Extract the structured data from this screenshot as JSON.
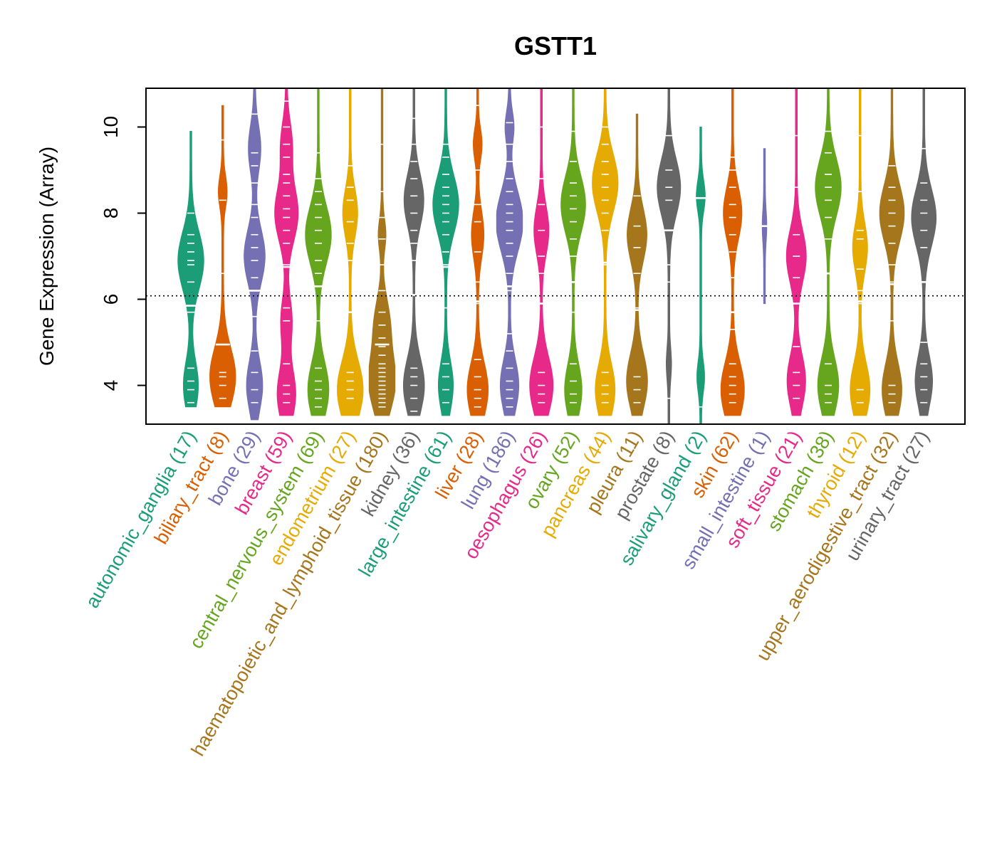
{
  "chart_data": {
    "type": "violin",
    "title": "GSTT1",
    "ylabel": "Gene Expression (Array)",
    "xlabel": "",
    "ylim": [
      3.1,
      10.9
    ],
    "yticks": [
      4,
      6,
      8,
      10
    ],
    "reference_line": 6.08,
    "categories": [
      {
        "name": "autonomic_ganglia",
        "n": "(17)",
        "color": "#1B9E77",
        "median": 5.85,
        "min": 3.5,
        "max": 9.9,
        "modes": [
          [
            4.0,
            0.55
          ],
          [
            6.9,
            1.0
          ]
        ],
        "points": [
          3.6,
          3.9,
          4.1,
          4.4,
          5.7,
          6.4,
          6.8,
          6.9,
          7.1,
          7.3,
          7.5,
          8.0
        ]
      },
      {
        "name": "biliary_tract",
        "n": "(8)",
        "color": "#D95F02",
        "median": 4.95,
        "min": 3.5,
        "max": 10.5,
        "modes": [
          [
            4.2,
            1.0
          ],
          [
            8.5,
            0.3
          ]
        ],
        "points": [
          3.7,
          4.0,
          4.2,
          4.3,
          6.6,
          8.3,
          9.7
        ]
      },
      {
        "name": "bone",
        "n": "(29)",
        "color": "#7570B3",
        "median": 6.2,
        "min": 3.2,
        "max": 10.9,
        "modes": [
          [
            4.0,
            0.6
          ],
          [
            7.0,
            0.8
          ],
          [
            9.5,
            0.45
          ]
        ],
        "points": [
          3.6,
          3.9,
          4.3,
          4.8,
          5.6,
          6.2,
          6.5,
          6.9,
          7.2,
          7.5,
          7.9,
          8.2,
          8.7,
          9.1,
          9.4,
          10.3
        ]
      },
      {
        "name": "breast",
        "n": "(59)",
        "color": "#E7298A",
        "median": 6.75,
        "min": 3.3,
        "max": 10.9,
        "modes": [
          [
            3.8,
            0.7
          ],
          [
            5.5,
            0.4
          ],
          [
            8.0,
            0.9
          ],
          [
            9.6,
            0.4
          ]
        ],
        "points": [
          3.6,
          3.8,
          4.0,
          4.5,
          5.5,
          5.8,
          6.8,
          7.3,
          7.6,
          7.9,
          8.1,
          8.4,
          8.7,
          8.9,
          9.3,
          9.6,
          10.0,
          10.6
        ]
      },
      {
        "name": "central_nervous_system",
        "n": "(69)",
        "color": "#66A61E",
        "median": 6.3,
        "min": 3.3,
        "max": 10.9,
        "modes": [
          [
            3.9,
            0.8
          ],
          [
            7.5,
            1.0
          ]
        ],
        "points": [
          3.5,
          3.7,
          3.9,
          4.1,
          4.4,
          5.5,
          6.3,
          6.6,
          6.9,
          7.3,
          7.6,
          7.9,
          8.2,
          8.5,
          8.8,
          9.4
        ]
      },
      {
        "name": "endometrium",
        "n": "(27)",
        "color": "#E6AB02",
        "median": 5.7,
        "min": 3.3,
        "max": 10.9,
        "modes": [
          [
            3.9,
            1.0
          ],
          [
            8.0,
            0.55
          ]
        ],
        "points": [
          3.7,
          3.9,
          4.1,
          4.3,
          5.7,
          6.9,
          7.3,
          7.8,
          8.3,
          8.6,
          9.1
        ]
      },
      {
        "name": "haematopoietic_and_lymphoid_tissue",
        "n": "(180)",
        "color": "#A6761D",
        "median": 4.95,
        "min": 3.3,
        "max": 10.9,
        "modes": [
          [
            4.1,
            1.05
          ],
          [
            5.5,
            0.5
          ],
          [
            7.5,
            0.25
          ]
        ],
        "points": [
          3.5,
          3.6,
          3.7,
          3.8,
          3.9,
          4.0,
          4.1,
          4.2,
          4.3,
          4.4,
          4.5,
          4.7,
          4.9,
          5.1,
          5.4,
          5.7,
          6.2,
          6.8,
          7.4,
          7.9,
          8.5,
          9.6
        ]
      },
      {
        "name": "kidney",
        "n": "(36)",
        "color": "#666666",
        "median": 6.1,
        "min": 3.3,
        "max": 10.9,
        "modes": [
          [
            4.0,
            0.8
          ],
          [
            8.3,
            0.75
          ]
        ],
        "points": [
          3.4,
          3.7,
          4.0,
          4.2,
          4.4,
          6.9,
          7.3,
          7.6,
          8.0,
          8.4,
          8.8,
          9.2,
          9.6,
          10.2
        ]
      },
      {
        "name": "large_intestine",
        "n": "(61)",
        "color": "#1B9E77",
        "median": 6.75,
        "min": 3.3,
        "max": 10.9,
        "modes": [
          [
            4.0,
            0.55
          ],
          [
            8.2,
            1.0
          ]
        ],
        "points": [
          3.6,
          3.9,
          4.2,
          4.5,
          5.8,
          6.8,
          7.1,
          7.5,
          7.8,
          8.0,
          8.2,
          8.4,
          8.6,
          8.9,
          9.3,
          9.6
        ]
      },
      {
        "name": "liver",
        "n": "(28)",
        "color": "#D95F02",
        "median": 5.95,
        "min": 3.3,
        "max": 10.9,
        "modes": [
          [
            3.9,
            0.8
          ],
          [
            7.5,
            0.45
          ],
          [
            9.6,
            0.3
          ]
        ],
        "points": [
          3.5,
          3.7,
          3.9,
          4.2,
          4.6,
          5.9,
          6.4,
          7.1,
          7.8,
          8.2,
          9.0,
          10.5
        ]
      },
      {
        "name": "lung",
        "n": "(186)",
        "color": "#7570B3",
        "median": 6.3,
        "min": 3.3,
        "max": 10.9,
        "modes": [
          [
            4.0,
            0.7
          ],
          [
            7.8,
            1.05
          ],
          [
            10.0,
            0.3
          ]
        ],
        "points": [
          3.5,
          3.7,
          3.9,
          4.1,
          4.4,
          4.8,
          5.2,
          6.2,
          6.6,
          7.0,
          7.3,
          7.6,
          7.8,
          8.0,
          8.2,
          8.5,
          8.8,
          9.2,
          9.6,
          10.1
        ]
      },
      {
        "name": "oesophagus",
        "n": "(26)",
        "color": "#E7298A",
        "median": 5.9,
        "min": 3.3,
        "max": 10.9,
        "modes": [
          [
            4.0,
            0.9
          ],
          [
            7.6,
            0.55
          ]
        ],
        "points": [
          3.6,
          3.8,
          4.0,
          4.3,
          5.9,
          6.6,
          7.0,
          7.6,
          8.2,
          8.8,
          10.0
        ]
      },
      {
        "name": "ovary",
        "n": "(52)",
        "color": "#66A61E",
        "median": 6.4,
        "min": 3.3,
        "max": 10.9,
        "modes": [
          [
            3.9,
            0.65
          ],
          [
            8.2,
            0.95
          ]
        ],
        "points": [
          3.6,
          3.8,
          4.1,
          4.5,
          5.7,
          6.4,
          7.0,
          7.4,
          7.8,
          8.1,
          8.4,
          8.7,
          9.2,
          9.9
        ]
      },
      {
        "name": "pancreas",
        "n": "(44)",
        "color": "#E6AB02",
        "median": 6.85,
        "min": 3.3,
        "max": 10.9,
        "modes": [
          [
            3.9,
            0.75
          ],
          [
            8.7,
            1.0
          ]
        ],
        "points": [
          3.6,
          3.8,
          4.0,
          4.3,
          6.8,
          7.6,
          8.0,
          8.3,
          8.6,
          8.9,
          9.2,
          9.6,
          10.0
        ]
      },
      {
        "name": "pleura",
        "n": "(11)",
        "color": "#A6761D",
        "median": 5.75,
        "min": 3.3,
        "max": 10.3,
        "modes": [
          [
            4.1,
            0.8
          ],
          [
            7.5,
            0.75
          ]
        ],
        "points": [
          3.6,
          3.9,
          4.2,
          5.8,
          6.6,
          7.2,
          7.7,
          8.4
        ]
      },
      {
        "name": "prostate",
        "n": "(8)",
        "color": "#666666",
        "median": 7.6,
        "min": 3.1,
        "max": 10.9,
        "modes": [
          [
            4.5,
            0.15
          ],
          [
            8.6,
            0.9
          ]
        ],
        "points": [
          3.7,
          6.4,
          6.8,
          7.6,
          8.3,
          8.6,
          9.0,
          9.8
        ]
      },
      {
        "name": "salivary_gland",
        "n": "(2)",
        "color": "#1B9E77",
        "median": 8.35,
        "min": 3.1,
        "max": 10.0,
        "modes": [
          [
            4.2,
            0.25
          ],
          [
            8.4,
            0.3
          ]
        ],
        "points": [
          3.5,
          8.35
        ]
      },
      {
        "name": "skin",
        "n": "(62)",
        "color": "#D95F02",
        "median": 5.7,
        "min": 3.3,
        "max": 10.9,
        "modes": [
          [
            3.9,
            0.9
          ],
          [
            8.0,
            0.7
          ]
        ],
        "points": [
          3.6,
          3.8,
          4.0,
          4.2,
          4.5,
          5.3,
          5.7,
          6.5,
          7.1,
          7.5,
          7.9,
          8.2,
          8.6,
          9.0,
          9.3
        ]
      },
      {
        "name": "small_intestine",
        "n": "(1)",
        "color": "#7570B3",
        "median": 7.7,
        "min": 5.9,
        "max": 9.5,
        "modes": [
          [
            7.7,
            0.12
          ]
        ],
        "points": [
          7.7
        ]
      },
      {
        "name": "soft_tissue",
        "n": "(21)",
        "color": "#E7298A",
        "median": 5.9,
        "min": 3.3,
        "max": 10.9,
        "modes": [
          [
            4.1,
            0.7
          ],
          [
            7.0,
            0.75
          ]
        ],
        "points": [
          3.7,
          4.0,
          4.3,
          4.9,
          5.9,
          6.5,
          7.0,
          7.5,
          8.6,
          9.8
        ]
      },
      {
        "name": "stomach",
        "n": "(38)",
        "color": "#66A61E",
        "median": 6.6,
        "min": 3.3,
        "max": 10.9,
        "modes": [
          [
            4.0,
            0.8
          ],
          [
            8.6,
            1.0
          ]
        ],
        "points": [
          3.6,
          3.8,
          4.0,
          4.5,
          6.6,
          7.4,
          7.9,
          8.3,
          8.6,
          8.9,
          9.4,
          9.9
        ]
      },
      {
        "name": "thyroid",
        "n": "(12)",
        "color": "#E6AB02",
        "median": 5.95,
        "min": 3.3,
        "max": 10.9,
        "modes": [
          [
            3.9,
            0.75
          ],
          [
            7.2,
            0.55
          ]
        ],
        "points": [
          3.6,
          3.9,
          5.9,
          6.2,
          6.7,
          7.4,
          7.6,
          8.5,
          9.8
        ]
      },
      {
        "name": "upper_aerodigestive_tract",
        "n": "(32)",
        "color": "#A6761D",
        "median": 6.35,
        "min": 3.3,
        "max": 10.9,
        "modes": [
          [
            3.9,
            0.75
          ],
          [
            8.0,
            0.95
          ]
        ],
        "points": [
          3.6,
          3.8,
          4.0,
          5.5,
          6.4,
          6.8,
          7.3,
          7.7,
          8.0,
          8.3,
          8.6,
          9.1
        ]
      },
      {
        "name": "urinary_tract",
        "n": "(27)",
        "color": "#666666",
        "median": 6.4,
        "min": 3.3,
        "max": 10.9,
        "modes": [
          [
            4.1,
            0.65
          ],
          [
            7.9,
            0.95
          ]
        ],
        "points": [
          3.6,
          3.9,
          4.2,
          4.5,
          5.0,
          6.4,
          7.2,
          7.6,
          8.0,
          8.3,
          8.7,
          9.5
        ]
      }
    ]
  }
}
